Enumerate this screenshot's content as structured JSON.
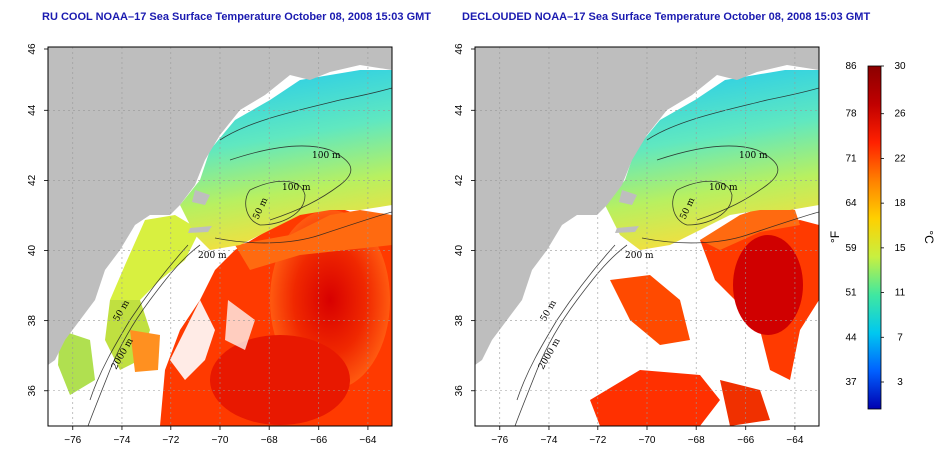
{
  "panels": [
    {
      "title": "RU COOL NOAA–17 Sea Surface Temperature October 08, 2008 15:03 GMT",
      "product": "cloud-contaminated"
    },
    {
      "title": "DECLOUDED NOAA–17 Sea Surface Temperature October 08, 2008 15:03 GMT",
      "product": "declouded"
    }
  ],
  "axes": {
    "lon_ticks": [
      "−76",
      "−74",
      "−72",
      "−70",
      "−68",
      "−66",
      "−64"
    ],
    "lat_ticks": [
      "36",
      "38",
      "40",
      "42",
      "44",
      "46"
    ]
  },
  "isobaths": [
    "50 m",
    "100 m",
    "100 m",
    "200 m",
    "50 m",
    "2000 m"
  ],
  "colorbar": {
    "f_unit": "°F",
    "c_unit": "°C",
    "f_ticks": [
      "86",
      "78",
      "71",
      "64",
      "59",
      "51",
      "44",
      "37"
    ],
    "c_ticks": [
      "30",
      "26",
      "22",
      "18",
      "15",
      "11",
      "7",
      "3"
    ],
    "stops": [
      "#0000b0",
      "#0060ff",
      "#00c8f0",
      "#40e8a0",
      "#c8f040",
      "#ffd000",
      "#ff8000",
      "#ff2000",
      "#c00000",
      "#8b0000"
    ]
  },
  "colors": {
    "land": "#bebebe",
    "ocean_nodata": "#ffffff",
    "title": "#1a1ab0",
    "grid": "#999999"
  }
}
